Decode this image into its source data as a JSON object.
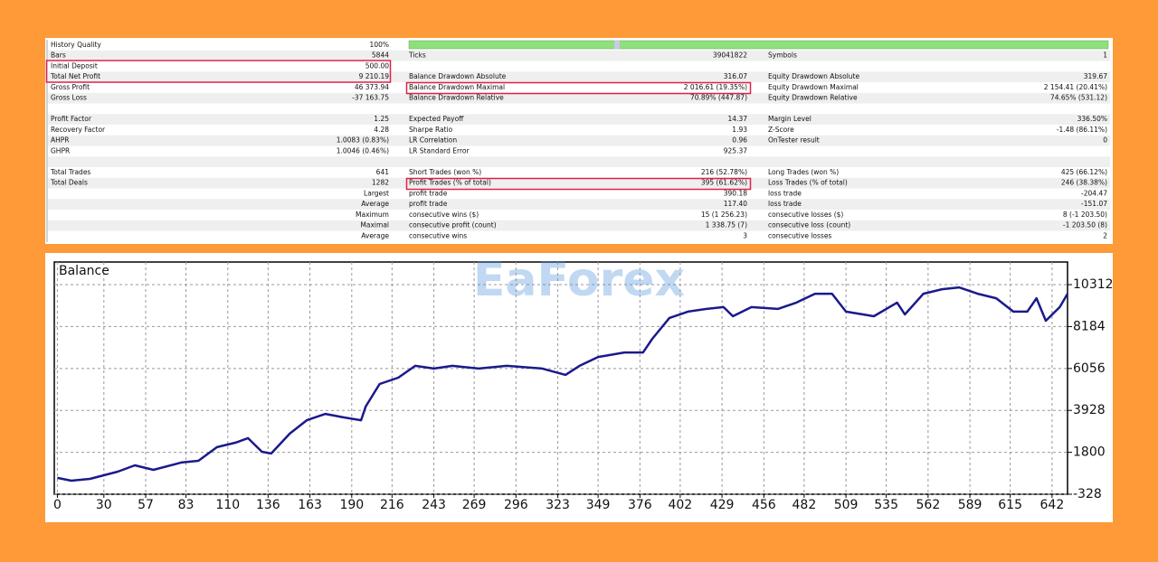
{
  "report": {
    "quality_label": "History Quality",
    "quality_value": "100%",
    "sections": [
      [
        {
          "l1": "Bars",
          "v1": "5844",
          "l2": "Ticks",
          "v2": "39041822",
          "l3": "Symbols",
          "v3": "1"
        },
        {
          "l1": "Initial Deposit",
          "v1": "500.00"
        },
        {
          "l1": "Total Net Profit",
          "v1": "9 210.19",
          "l2": "Balance Drawdown Absolute",
          "v2": "316.07",
          "l3": "Equity Drawdown Absolute",
          "v3": "319.67"
        },
        {
          "l1": "Gross Profit",
          "v1": "46 373.94",
          "l2": "Balance Drawdown Maximal",
          "v2": "2 016.61 (19.35%)",
          "l3": "Equity Drawdown Maximal",
          "v3": "2 154.41 (20.41%)"
        },
        {
          "l1": "Gross Loss",
          "v1": "-37 163.75",
          "l2": "Balance Drawdown Relative",
          "v2": "70.89% (447.87)",
          "l3": "Equity Drawdown Relative",
          "v3": "74.65% (531.12)"
        }
      ],
      [
        {
          "l1": "Profit Factor",
          "v1": "1.25",
          "l2": "Expected Payoff",
          "v2": "14.37",
          "l3": "Margin Level",
          "v3": "336.50%"
        },
        {
          "l1": "Recovery Factor",
          "v1": "4.28",
          "l2": "Sharpe Ratio",
          "v2": "1.93",
          "l3": "Z-Score",
          "v3": "-1.48 (86.11%)"
        },
        {
          "l1": "AHPR",
          "v1": "1.0083 (0.83%)",
          "l2": "LR Correlation",
          "v2": "0.96",
          "l3": "OnTester result",
          "v3": "0"
        },
        {
          "l1": "GHPR",
          "v1": "1.0046 (0.46%)",
          "l2": "LR Standard Error",
          "v2": "925.37"
        }
      ],
      [
        {
          "l1": "Total Trades",
          "v1": "641",
          "l2": "Short Trades (won %)",
          "v2": "216 (52.78%)",
          "l3": "Long Trades (won %)",
          "v3": "425 (66.12%)"
        },
        {
          "l1": "Total Deals",
          "v1": "1282",
          "l2": "Profit Trades (% of total)",
          "v2": "395 (61.62%)",
          "l3": "Loss Trades (% of total)",
          "v3": "246 (38.38%)"
        },
        {
          "v1": "Largest",
          "l2": "profit trade",
          "v2": "390.18",
          "l3": "loss trade",
          "v3": "-204.47"
        },
        {
          "v1": "Average",
          "l2": "profit trade",
          "v2": "117.40",
          "l3": "loss trade",
          "v3": "-151.07"
        },
        {
          "v1": "Maximum",
          "l2": "consecutive wins ($)",
          "v2": "15 (1 256.23)",
          "l3": "consecutive losses ($)",
          "v3": "8 (-1 203.50)"
        },
        {
          "v1": "Maximal",
          "l2": "consecutive profit (count)",
          "v2": "1 338.75 (7)",
          "l3": "consecutive loss (count)",
          "v3": "-1 203.50 (8)"
        },
        {
          "v1": "Average",
          "l2": "consecutive wins",
          "v2": "3",
          "l3": "consecutive losses",
          "v3": "2"
        }
      ]
    ]
  },
  "watermark": "EaForex",
  "chart_data": {
    "type": "line",
    "title": "Balance",
    "color": "#1a1a8c",
    "x": [
      0,
      9,
      21,
      39,
      50,
      62,
      80,
      91,
      103,
      115,
      123,
      132,
      138,
      150,
      161,
      173,
      185,
      196,
      199,
      208,
      220,
      231,
      243,
      255,
      272,
      290,
      313,
      328,
      337,
      349,
      366,
      378,
      384,
      395,
      407,
      419,
      430,
      436,
      448,
      465,
      477,
      489,
      500,
      509,
      527,
      542,
      547,
      559,
      571,
      582,
      594,
      606,
      617,
      626,
      632,
      638,
      647,
      652
    ],
    "values": [
      500,
      360,
      450,
      820,
      1140,
      910,
      1280,
      1370,
      2060,
      2290,
      2520,
      1830,
      1740,
      2750,
      3430,
      3750,
      3570,
      3430,
      4120,
      5270,
      5590,
      6190,
      6050,
      6190,
      6050,
      6190,
      6050,
      5730,
      6190,
      6640,
      6870,
      6870,
      7560,
      8620,
      8940,
      9080,
      9170,
      8710,
      9170,
      9080,
      9400,
      9850,
      9850,
      8940,
      8710,
      9400,
      8800,
      9850,
      10080,
      10170,
      9850,
      9620,
      8940,
      8940,
      9620,
      8480,
      9170,
      9850
    ],
    "xlim": [
      -2,
      652
    ],
    "ylim": [
      -328,
      11460
    ],
    "xticks": [
      0,
      30,
      57,
      83,
      110,
      136,
      163,
      190,
      216,
      243,
      269,
      296,
      323,
      349,
      376,
      402,
      429,
      456,
      482,
      509,
      535,
      562,
      589,
      615,
      642
    ],
    "yticks": [
      -328,
      1800,
      3928,
      6056,
      8184,
      10312
    ],
    "grid": true
  }
}
